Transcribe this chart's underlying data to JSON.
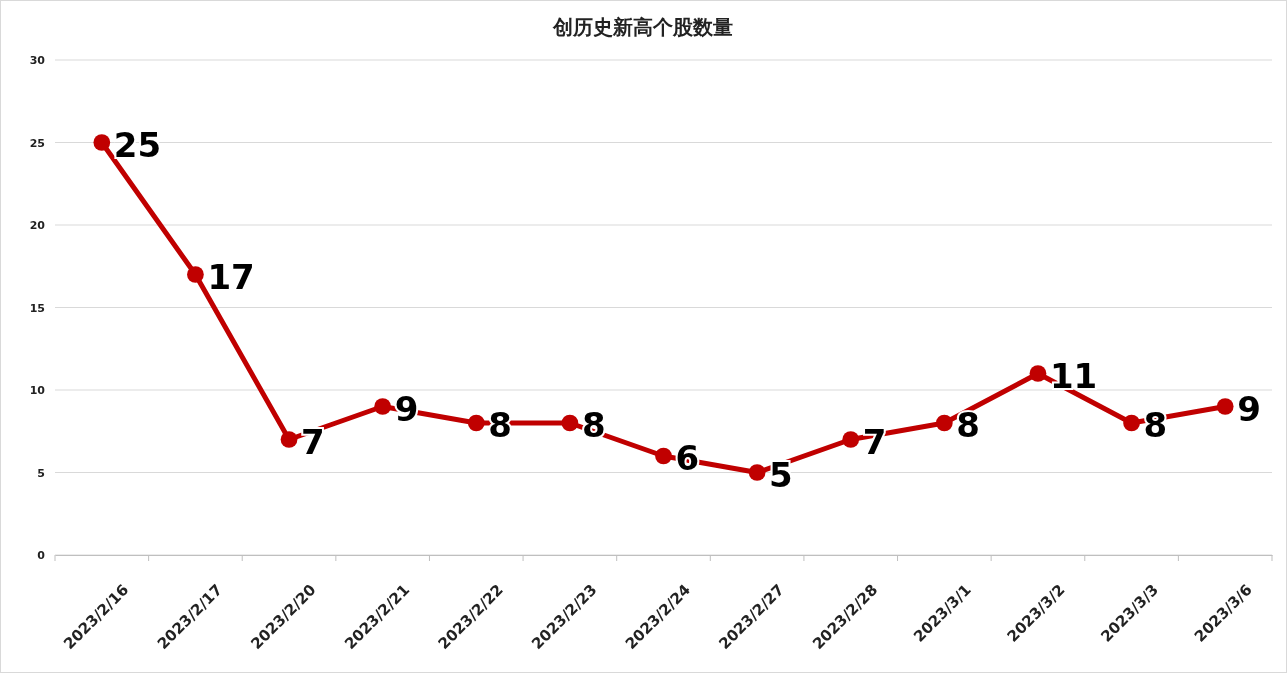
{
  "chart_data": {
    "type": "line",
    "title": "创历史新高个股数量",
    "categories": [
      "2023/2/16",
      "2023/2/17",
      "2023/2/20",
      "2023/2/21",
      "2023/2/22",
      "2023/2/23",
      "2023/2/24",
      "2023/2/27",
      "2023/2/28",
      "2023/3/1",
      "2023/3/2",
      "2023/3/3",
      "2023/3/6"
    ],
    "series": [
      {
        "color": "#c00000",
        "values": [
          25,
          17,
          7,
          9,
          8,
          8,
          6,
          5,
          7,
          8,
          11,
          8,
          9
        ]
      }
    ],
    "ylim": [
      0,
      30
    ],
    "yticks": [
      0,
      5,
      10,
      15,
      20,
      25,
      30
    ],
    "grid": "y",
    "marker": "circle",
    "line_style": "solid",
    "data_labels": true
  }
}
